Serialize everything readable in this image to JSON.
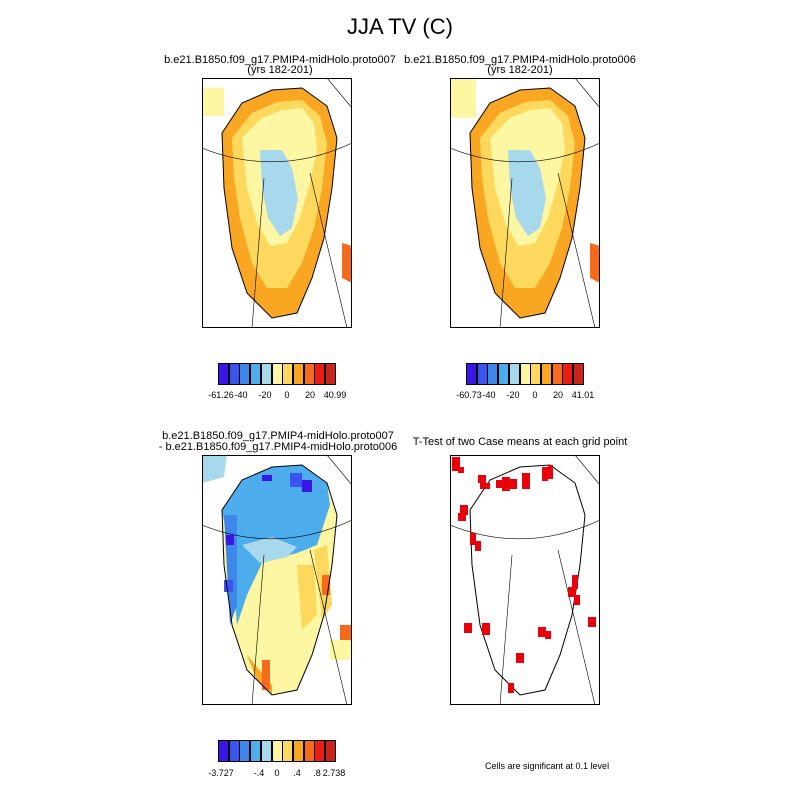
{
  "title": "JJA TV (C)",
  "panels": [
    {
      "line1": "b.e21.B1850.f09_g17.PMIP4-midHolo.proto007",
      "line2": "(yrs 182-201)",
      "colorbar": {
        "colors": [
          "#3a16e8",
          "#3a55ee",
          "#3e86ea",
          "#4cacec",
          "#a8d8ec",
          "#fdf6a2",
          "#fcd95c",
          "#f9a623",
          "#f56a1c",
          "#ec1c12",
          "#c9241e"
        ],
        "tick_labels": [
          "-61.26",
          "-40",
          "-20",
          "0",
          "20",
          "40.99"
        ]
      }
    },
    {
      "line1": "b.e21.B1850.f09_g17.PMIP4-midHolo.proto006",
      "line2": "(yrs 182-201)",
      "colorbar": {
        "colors": [
          "#3a16e8",
          "#3a55ee",
          "#3e86ea",
          "#4cacec",
          "#a8d8ec",
          "#fdf6a2",
          "#fcd95c",
          "#f9a623",
          "#f56a1c",
          "#ec1c12",
          "#c9241e"
        ],
        "tick_labels": [
          "-60.73",
          "-40",
          "-20",
          "0",
          "20",
          "41.01"
        ]
      }
    },
    {
      "line1": "b.e21.B1850.f09_g17.PMIP4-midHolo.proto007",
      "line2": "- b.e21.B1850.f09_g17.PMIP4-midHolo.proto006",
      "colorbar": {
        "colors": [
          "#3a16e8",
          "#3a55ee",
          "#3e86ea",
          "#4cacec",
          "#a8d8ec",
          "#fdf6a2",
          "#fcd95c",
          "#f9a623",
          "#f56a1c",
          "#ec1c12",
          "#c9241e"
        ],
        "tick_labels": [
          "-3.727",
          "-.4",
          "0",
          ".4",
          ".8",
          "2.738"
        ]
      }
    },
    {
      "line1": "T-Test of two Case means at each grid point",
      "note": "Cells are significant at 0.1 level",
      "sig_color": "#e8000b"
    }
  ]
}
